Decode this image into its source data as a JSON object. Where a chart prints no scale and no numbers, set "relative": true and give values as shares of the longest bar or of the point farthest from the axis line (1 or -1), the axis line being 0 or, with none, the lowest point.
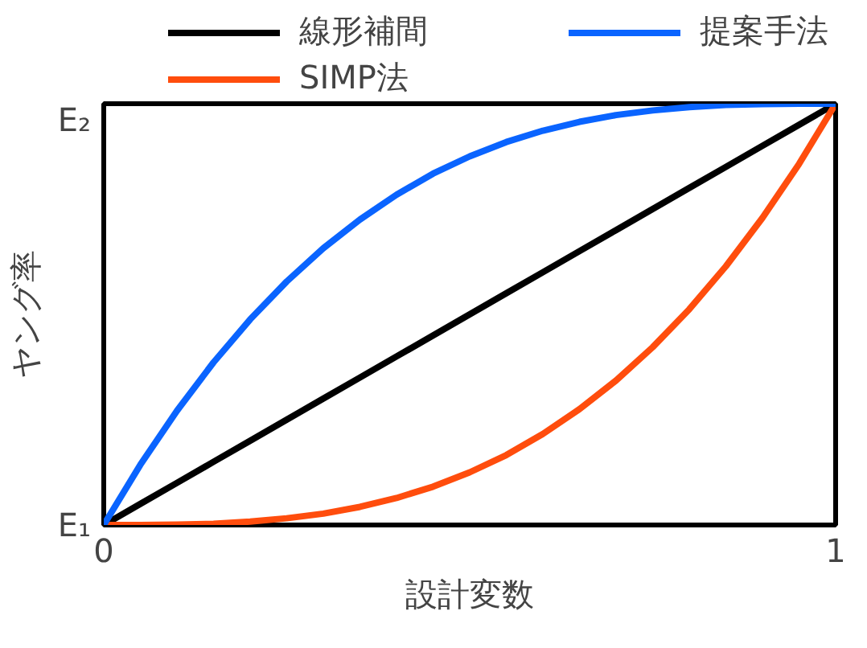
{
  "chart_data": {
    "type": "line",
    "xlabel": "設計変数",
    "ylabel": "ヤング率",
    "relative": true,
    "annotations": [
      "E₁",
      "E₂"
    ],
    "x": [
      0,
      0.05,
      0.1,
      0.15,
      0.2,
      0.25,
      0.3,
      0.35,
      0.4,
      0.45,
      0.5,
      0.55,
      0.6,
      0.65,
      0.7,
      0.75,
      0.8,
      0.85,
      0.9,
      0.95,
      1
    ],
    "series": [
      {
        "name": "線形補間",
        "color": "#000000",
        "values": [
          0,
          0.05,
          0.1,
          0.15,
          0.2,
          0.25,
          0.3,
          0.35,
          0.4,
          0.45,
          0.5,
          0.55,
          0.6,
          0.65,
          0.7,
          0.75,
          0.8,
          0.85,
          0.9,
          0.95,
          1
        ]
      },
      {
        "name": "SIMP法",
        "color": "#ff4d0d",
        "values": [
          0,
          0,
          0.001,
          0.003,
          0.008,
          0.016,
          0.027,
          0.043,
          0.064,
          0.091,
          0.125,
          0.166,
          0.216,
          0.275,
          0.343,
          0.422,
          0.512,
          0.614,
          0.729,
          0.857,
          1
        ]
      },
      {
        "name": "提案手法",
        "color": "#0a64ff",
        "values": [
          0,
          0.143,
          0.271,
          0.386,
          0.488,
          0.578,
          0.657,
          0.725,
          0.784,
          0.834,
          0.875,
          0.909,
          0.936,
          0.957,
          0.973,
          0.984,
          0.992,
          0.997,
          0.999,
          1,
          1
        ]
      }
    ],
    "xlim": [
      0,
      1
    ],
    "xticks": [
      0,
      1
    ],
    "legend": "top",
    "marker": "none",
    "line_style": "solid"
  }
}
